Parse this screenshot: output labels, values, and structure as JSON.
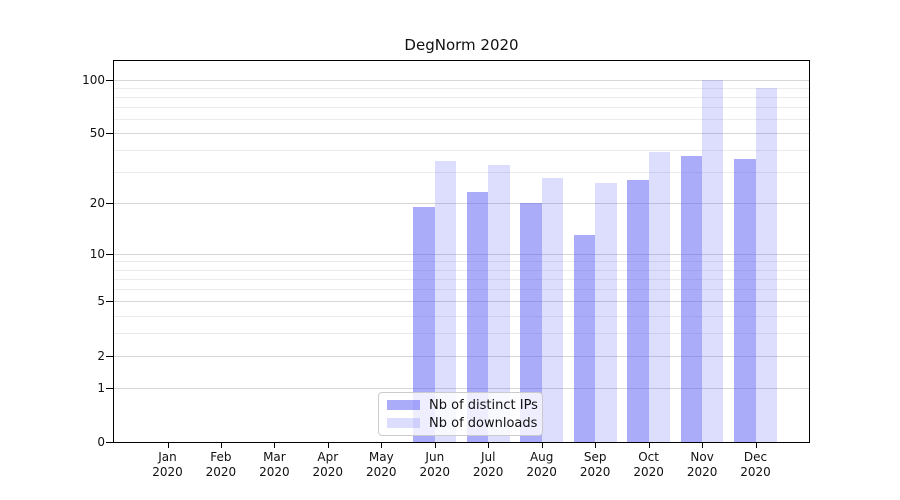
{
  "chart_data": {
    "type": "bar",
    "title": "DegNorm 2020",
    "months": [
      "Jan",
      "Feb",
      "Mar",
      "Apr",
      "May",
      "Jun",
      "Jul",
      "Aug",
      "Sep",
      "Oct",
      "Nov",
      "Dec"
    ],
    "year": "2020",
    "series": [
      {
        "name": "Nb of distinct IPs",
        "color": "rgba(85,87,243,0.5)",
        "color_flat": "#aaabf9",
        "values": [
          0,
          0,
          0,
          0,
          0,
          19,
          23,
          20,
          13,
          27,
          37,
          36
        ]
      },
      {
        "name": "Nb of downloads",
        "color": "rgba(85,87,243,0.2)",
        "color_flat": "#dddeff",
        "values": [
          0,
          0,
          0,
          0,
          0,
          35,
          33,
          28,
          26,
          39,
          100,
          90
        ]
      }
    ],
    "y_scale": "log1p",
    "y_major_ticks": [
      0,
      1,
      2,
      5,
      10,
      20,
      50,
      100
    ],
    "y_minor_ticks": [
      3,
      4,
      6,
      7,
      8,
      9,
      30,
      40,
      60,
      70,
      80,
      90
    ],
    "ylim": [
      0,
      127
    ],
    "xlabel": "",
    "ylabel": "",
    "grid": "both",
    "legend_position": "lower-center"
  },
  "colors": {
    "background": "#ffffff",
    "spine": "#000000",
    "major_grid": "#d6d6d6",
    "minor_grid": "#ebebeb",
    "text": "#111111",
    "legend_border": "#cbcbcb"
  }
}
